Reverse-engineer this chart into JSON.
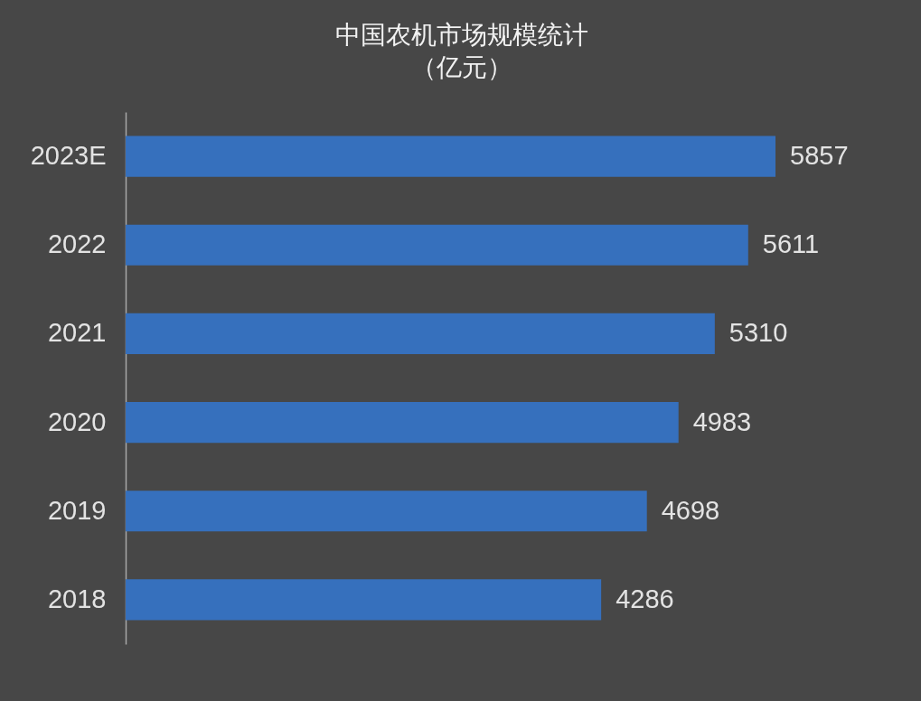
{
  "chart_data": {
    "type": "bar",
    "orientation": "horizontal",
    "title": "中国农机市场规模统计",
    "subtitle": "（亿元）",
    "categories": [
      "2023E",
      "2022",
      "2021",
      "2020",
      "2019",
      "2018"
    ],
    "values": [
      5857,
      5611,
      5310,
      4983,
      4698,
      4286
    ],
    "color": "#3670bd",
    "data_labels": true,
    "tick_labels": "y"
  }
}
